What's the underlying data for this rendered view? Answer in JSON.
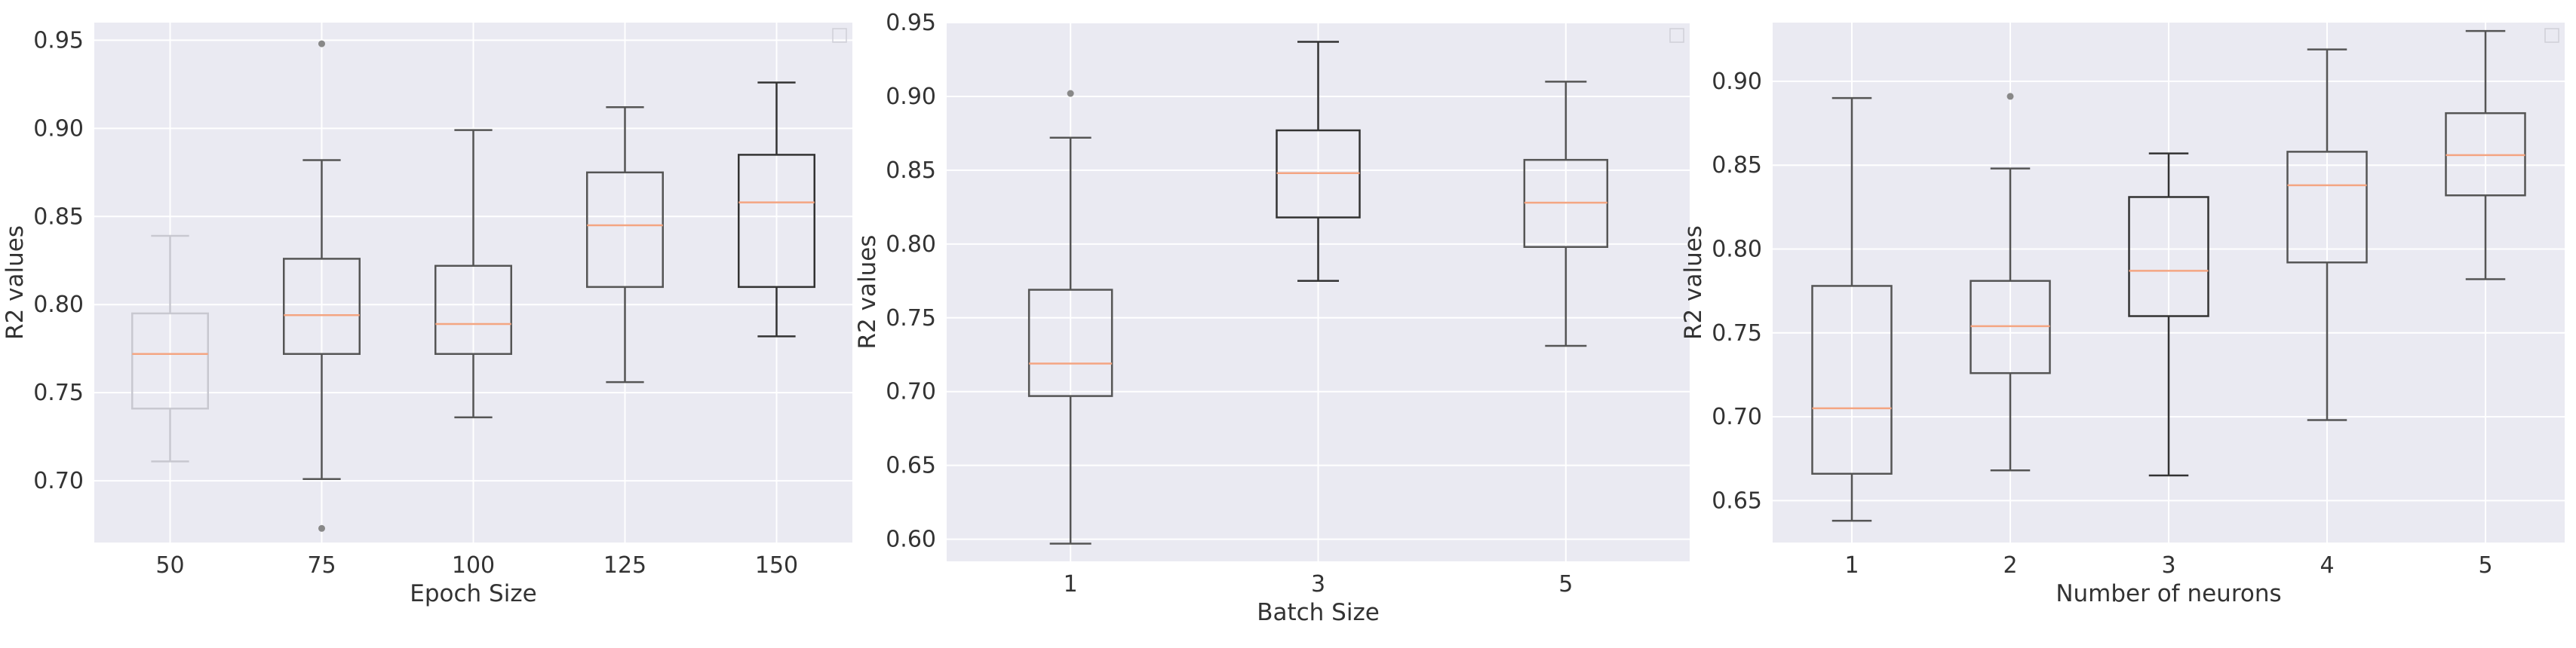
{
  "chart_data": [
    {
      "type": "box",
      "xlabel": "Epoch Size",
      "ylabel": "R2 values",
      "categories": [
        "50",
        "75",
        "100",
        "125",
        "150"
      ],
      "ylim": [
        0.665,
        0.96
      ],
      "yticks": [
        0.7,
        0.75,
        0.8,
        0.85,
        0.9,
        0.95
      ],
      "grid": true,
      "legend": "top-right (empty)",
      "boxes": [
        {
          "min": 0.711,
          "q1": 0.741,
          "median": 0.772,
          "q3": 0.795,
          "max": 0.839,
          "fliers": [],
          "color": "#c8c8d0"
        },
        {
          "min": 0.701,
          "q1": 0.772,
          "median": 0.794,
          "q3": 0.826,
          "max": 0.882,
          "fliers": [
            0.948,
            0.673
          ],
          "color": "#555555"
        },
        {
          "min": 0.736,
          "q1": 0.772,
          "median": 0.789,
          "q3": 0.822,
          "max": 0.899,
          "fliers": [],
          "color": "#555555"
        },
        {
          "min": 0.756,
          "q1": 0.81,
          "median": 0.845,
          "q3": 0.875,
          "max": 0.912,
          "fliers": [],
          "color": "#555555"
        },
        {
          "min": 0.782,
          "q1": 0.81,
          "median": 0.858,
          "q3": 0.885,
          "max": 0.926,
          "fliers": [],
          "color": "#333333"
        }
      ]
    },
    {
      "type": "box",
      "xlabel": "Batch Size",
      "ylabel": "R2 values",
      "categories": [
        "1",
        "3",
        "5"
      ],
      "ylim": [
        0.585,
        0.95
      ],
      "yticks": [
        0.6,
        0.65,
        0.7,
        0.75,
        0.8,
        0.85,
        0.9,
        0.95
      ],
      "grid": true,
      "legend": "top-right (empty)",
      "boxes": [
        {
          "min": 0.597,
          "q1": 0.697,
          "median": 0.719,
          "q3": 0.769,
          "max": 0.872,
          "fliers": [
            0.902
          ],
          "color": "#555555"
        },
        {
          "min": 0.775,
          "q1": 0.818,
          "median": 0.848,
          "q3": 0.877,
          "max": 0.937,
          "fliers": [],
          "color": "#333333"
        },
        {
          "min": 0.731,
          "q1": 0.798,
          "median": 0.828,
          "q3": 0.857,
          "max": 0.91,
          "fliers": [],
          "color": "#555555"
        }
      ]
    },
    {
      "type": "box",
      "xlabel": "Number of neurons",
      "ylabel": "R2 values",
      "categories": [
        "1",
        "2",
        "3",
        "4",
        "5"
      ],
      "ylim": [
        0.625,
        0.935
      ],
      "yticks": [
        0.65,
        0.7,
        0.75,
        0.8,
        0.85,
        0.9
      ],
      "grid": true,
      "legend": "top-right (empty)",
      "boxes": [
        {
          "min": 0.638,
          "q1": 0.666,
          "median": 0.705,
          "q3": 0.778,
          "max": 0.89,
          "fliers": [],
          "color": "#555555"
        },
        {
          "min": 0.668,
          "q1": 0.726,
          "median": 0.754,
          "q3": 0.781,
          "max": 0.848,
          "fliers": [
            0.891
          ],
          "color": "#555555"
        },
        {
          "min": 0.665,
          "q1": 0.76,
          "median": 0.787,
          "q3": 0.831,
          "max": 0.857,
          "fliers": [],
          "color": "#333333"
        },
        {
          "min": 0.698,
          "q1": 0.792,
          "median": 0.838,
          "q3": 0.858,
          "max": 0.919,
          "fliers": [],
          "color": "#555555"
        },
        {
          "min": 0.782,
          "q1": 0.832,
          "median": 0.856,
          "q3": 0.881,
          "max": 0.93,
          "fliers": [],
          "color": "#555555"
        }
      ]
    }
  ],
  "style": {
    "background": "#eaeaf2",
    "grid_color": "#ffffff",
    "median_color": "#f4a582",
    "text_color": "#333333"
  }
}
